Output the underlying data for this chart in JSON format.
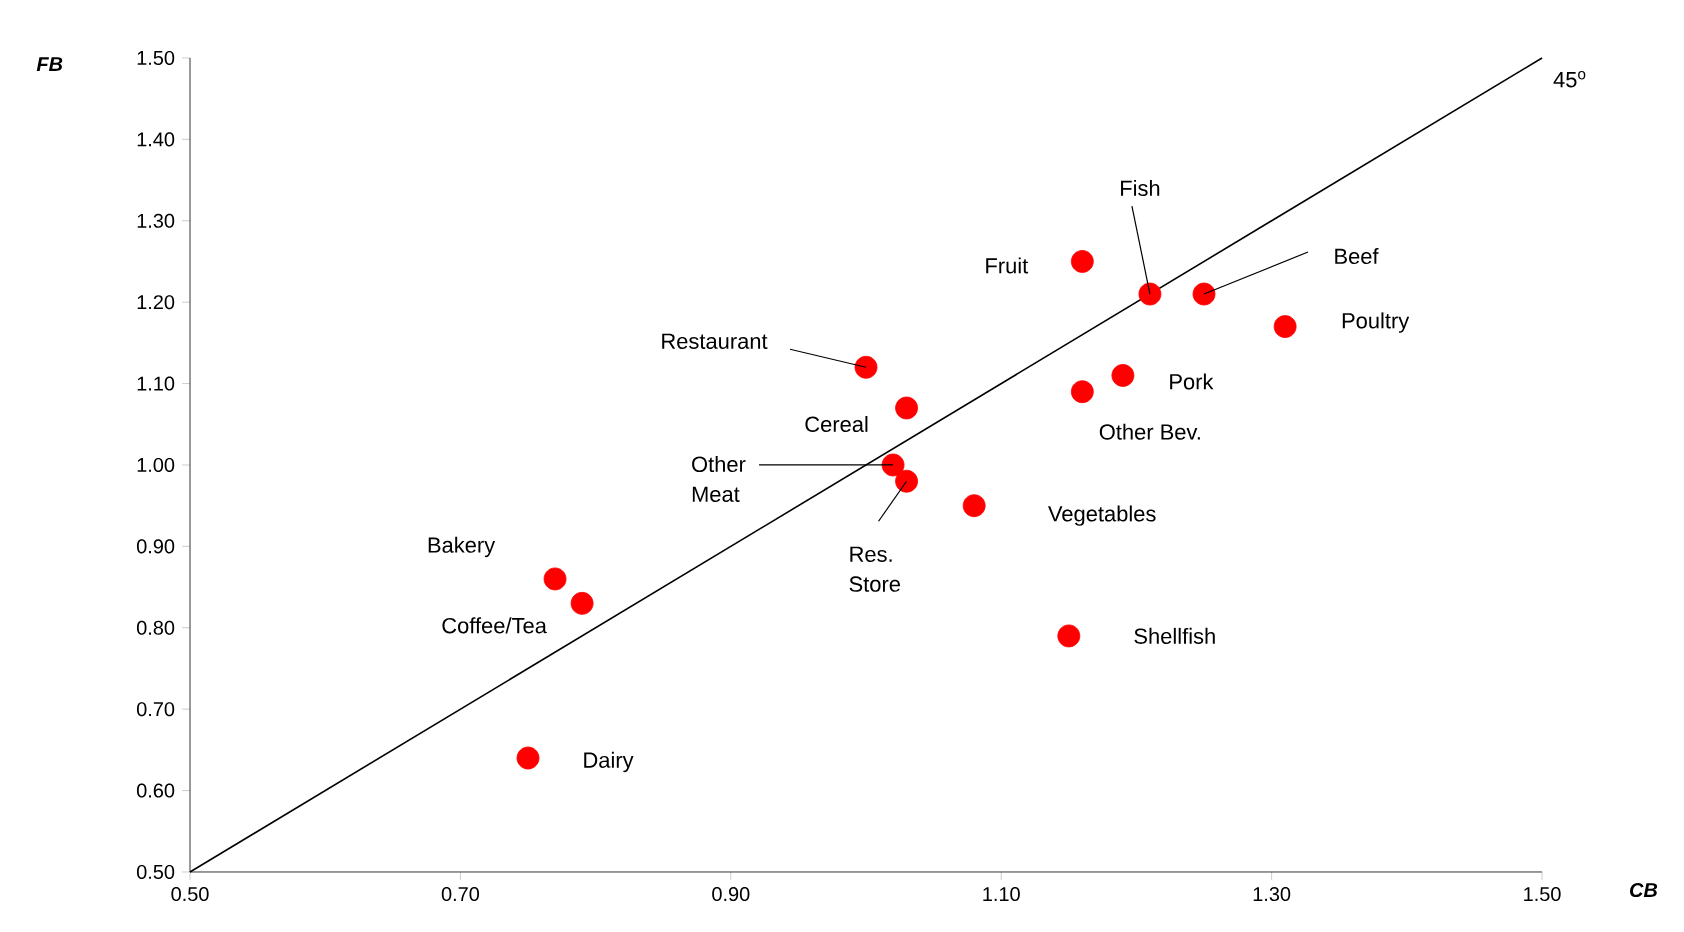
{
  "chart_data": {
    "type": "scatter",
    "xlabel": "CB",
    "ylabel": "FB",
    "xlim": [
      0.5,
      1.5
    ],
    "ylim": [
      0.5,
      1.5
    ],
    "xticks": [
      {
        "value": 0.5,
        "label": "0.50"
      },
      {
        "value": 0.7,
        "label": "0.70"
      },
      {
        "value": 0.9,
        "label": "0.90"
      },
      {
        "value": 1.1,
        "label": "1.10"
      },
      {
        "value": 1.3,
        "label": "1.30"
      },
      {
        "value": 1.5,
        "label": "1.50"
      }
    ],
    "yticks": [
      {
        "value": 0.5,
        "label": "0.50"
      },
      {
        "value": 0.6,
        "label": "0.60"
      },
      {
        "value": 0.7,
        "label": "0.70"
      },
      {
        "value": 0.8,
        "label": "0.80"
      },
      {
        "value": 0.9,
        "label": "0.90"
      },
      {
        "value": 1.0,
        "label": "1.00"
      },
      {
        "value": 1.1,
        "label": "1.10"
      },
      {
        "value": 1.2,
        "label": "1.20"
      },
      {
        "value": 1.3,
        "label": "1.30"
      },
      {
        "value": 1.4,
        "label": "1.40"
      },
      {
        "value": 1.5,
        "label": "1.50"
      }
    ],
    "annotations": [
      {
        "text": "45$^{o}$",
        "x": 1.5,
        "y": 1.5
      }
    ],
    "series": [
      {
        "type": "line",
        "marker": "none",
        "color": "#000000",
        "x": [
          0.5,
          1.5
        ],
        "values": [
          0.5,
          1.5
        ]
      },
      {
        "name": "Dairy",
        "marker": "circle",
        "color": "#ff0000",
        "x": [
          0.75
        ],
        "values": [
          0.64
        ]
      },
      {
        "name": "Bakery",
        "marker": "circle",
        "color": "#ff0000",
        "x": [
          0.77
        ],
        "values": [
          0.86
        ]
      },
      {
        "name": "Coffee/Tea",
        "marker": "circle",
        "color": "#ff0000",
        "x": [
          0.79
        ],
        "values": [
          0.83
        ]
      },
      {
        "name": "Restaurant",
        "marker": "circle",
        "color": "#ff0000",
        "x": [
          1.0
        ],
        "values": [
          1.12
        ]
      },
      {
        "name": "Cereal",
        "marker": "circle",
        "color": "#ff0000",
        "x": [
          1.03
        ],
        "values": [
          1.07
        ]
      },
      {
        "name": "Other Meat",
        "marker": "circle",
        "color": "#ff0000",
        "x": [
          1.02
        ],
        "values": [
          1.0
        ]
      },
      {
        "name": "Res. Store",
        "marker": "circle",
        "color": "#ff0000",
        "x": [
          1.03
        ],
        "values": [
          0.98
        ]
      },
      {
        "name": "Vegetables",
        "marker": "circle",
        "color": "#ff0000",
        "x": [
          1.08
        ],
        "values": [
          0.95
        ]
      },
      {
        "name": "Shellfish",
        "marker": "circle",
        "color": "#ff0000",
        "x": [
          1.15
        ],
        "values": [
          0.79
        ]
      },
      {
        "name": "Other Bev.",
        "marker": "circle",
        "color": "#ff0000",
        "x": [
          1.16
        ],
        "values": [
          1.09
        ]
      },
      {
        "name": "Pork",
        "marker": "circle",
        "color": "#ff0000",
        "x": [
          1.19
        ],
        "values": [
          1.11
        ]
      },
      {
        "name": "Fruit",
        "marker": "circle",
        "color": "#ff0000",
        "x": [
          1.16
        ],
        "values": [
          1.25
        ]
      },
      {
        "name": "Fish",
        "marker": "circle",
        "color": "#ff0000",
        "x": [
          1.21
        ],
        "values": [
          1.21
        ]
      },
      {
        "name": "Beef",
        "marker": "circle",
        "color": "#ff0000",
        "x": [
          1.25
        ],
        "values": [
          1.21
        ]
      },
      {
        "name": "Poultry",
        "marker": "circle",
        "color": "#ff0000",
        "x": [
          1.31
        ],
        "values": [
          1.17
        ]
      }
    ]
  }
}
